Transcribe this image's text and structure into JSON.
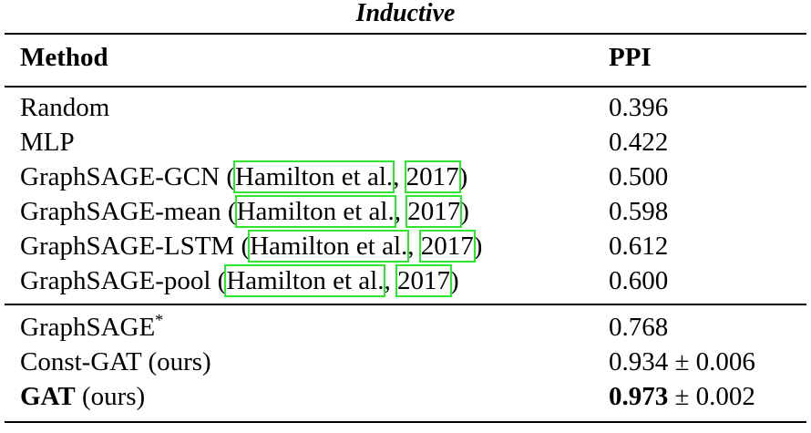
{
  "title": "Inductive",
  "table": {
    "header": [
      [
        {
          "text": "Method",
          "style": "bold"
        }
      ],
      [
        {
          "text": "PPI",
          "style": "bold"
        }
      ]
    ],
    "groups": [
      [
        [
          [
            {
              "text": "Random"
            }
          ],
          [
            {
              "text": "0.396"
            }
          ]
        ],
        [
          [
            {
              "text": "MLP"
            }
          ],
          [
            {
              "text": "0.422"
            }
          ]
        ],
        [
          [
            {
              "text": "GraphSAGE-GCN ("
            },
            {
              "text": "Hamilton et al.",
              "style": "cite"
            },
            {
              "text": ", "
            },
            {
              "text": "2017",
              "style": "cite"
            },
            {
              "text": ")"
            }
          ],
          [
            {
              "text": "0.500"
            }
          ]
        ],
        [
          [
            {
              "text": "GraphSAGE-mean ("
            },
            {
              "text": "Hamilton et al.",
              "style": "cite"
            },
            {
              "text": ", "
            },
            {
              "text": "2017",
              "style": "cite"
            },
            {
              "text": ")"
            }
          ],
          [
            {
              "text": "0.598"
            }
          ]
        ],
        [
          [
            {
              "text": "GraphSAGE-LSTM ("
            },
            {
              "text": "Hamilton et al.",
              "style": "cite"
            },
            {
              "text": ", "
            },
            {
              "text": "2017",
              "style": "cite"
            },
            {
              "text": ")"
            }
          ],
          [
            {
              "text": "0.612"
            }
          ]
        ],
        [
          [
            {
              "text": "GraphSAGE-pool ("
            },
            {
              "text": "Hamilton et al.",
              "style": "cite"
            },
            {
              "text": ", "
            },
            {
              "text": "2017",
              "style": "cite"
            },
            {
              "text": ")"
            }
          ],
          [
            {
              "text": "0.600"
            }
          ]
        ]
      ],
      [
        [
          [
            {
              "text": "GraphSAGE"
            },
            {
              "text": "*",
              "style": "sup"
            }
          ],
          [
            {
              "text": "0.768"
            }
          ]
        ],
        [
          [
            {
              "text": "Const-GAT (ours)"
            }
          ],
          [
            {
              "text": "0.934 ± 0.006"
            }
          ]
        ],
        [
          [
            {
              "text": "GAT",
              "style": "bold"
            },
            {
              "text": " (ours)"
            }
          ],
          [
            {
              "text": "0.973",
              "style": "bold"
            },
            {
              "text": " ± 0.002"
            }
          ]
        ]
      ]
    ]
  }
}
